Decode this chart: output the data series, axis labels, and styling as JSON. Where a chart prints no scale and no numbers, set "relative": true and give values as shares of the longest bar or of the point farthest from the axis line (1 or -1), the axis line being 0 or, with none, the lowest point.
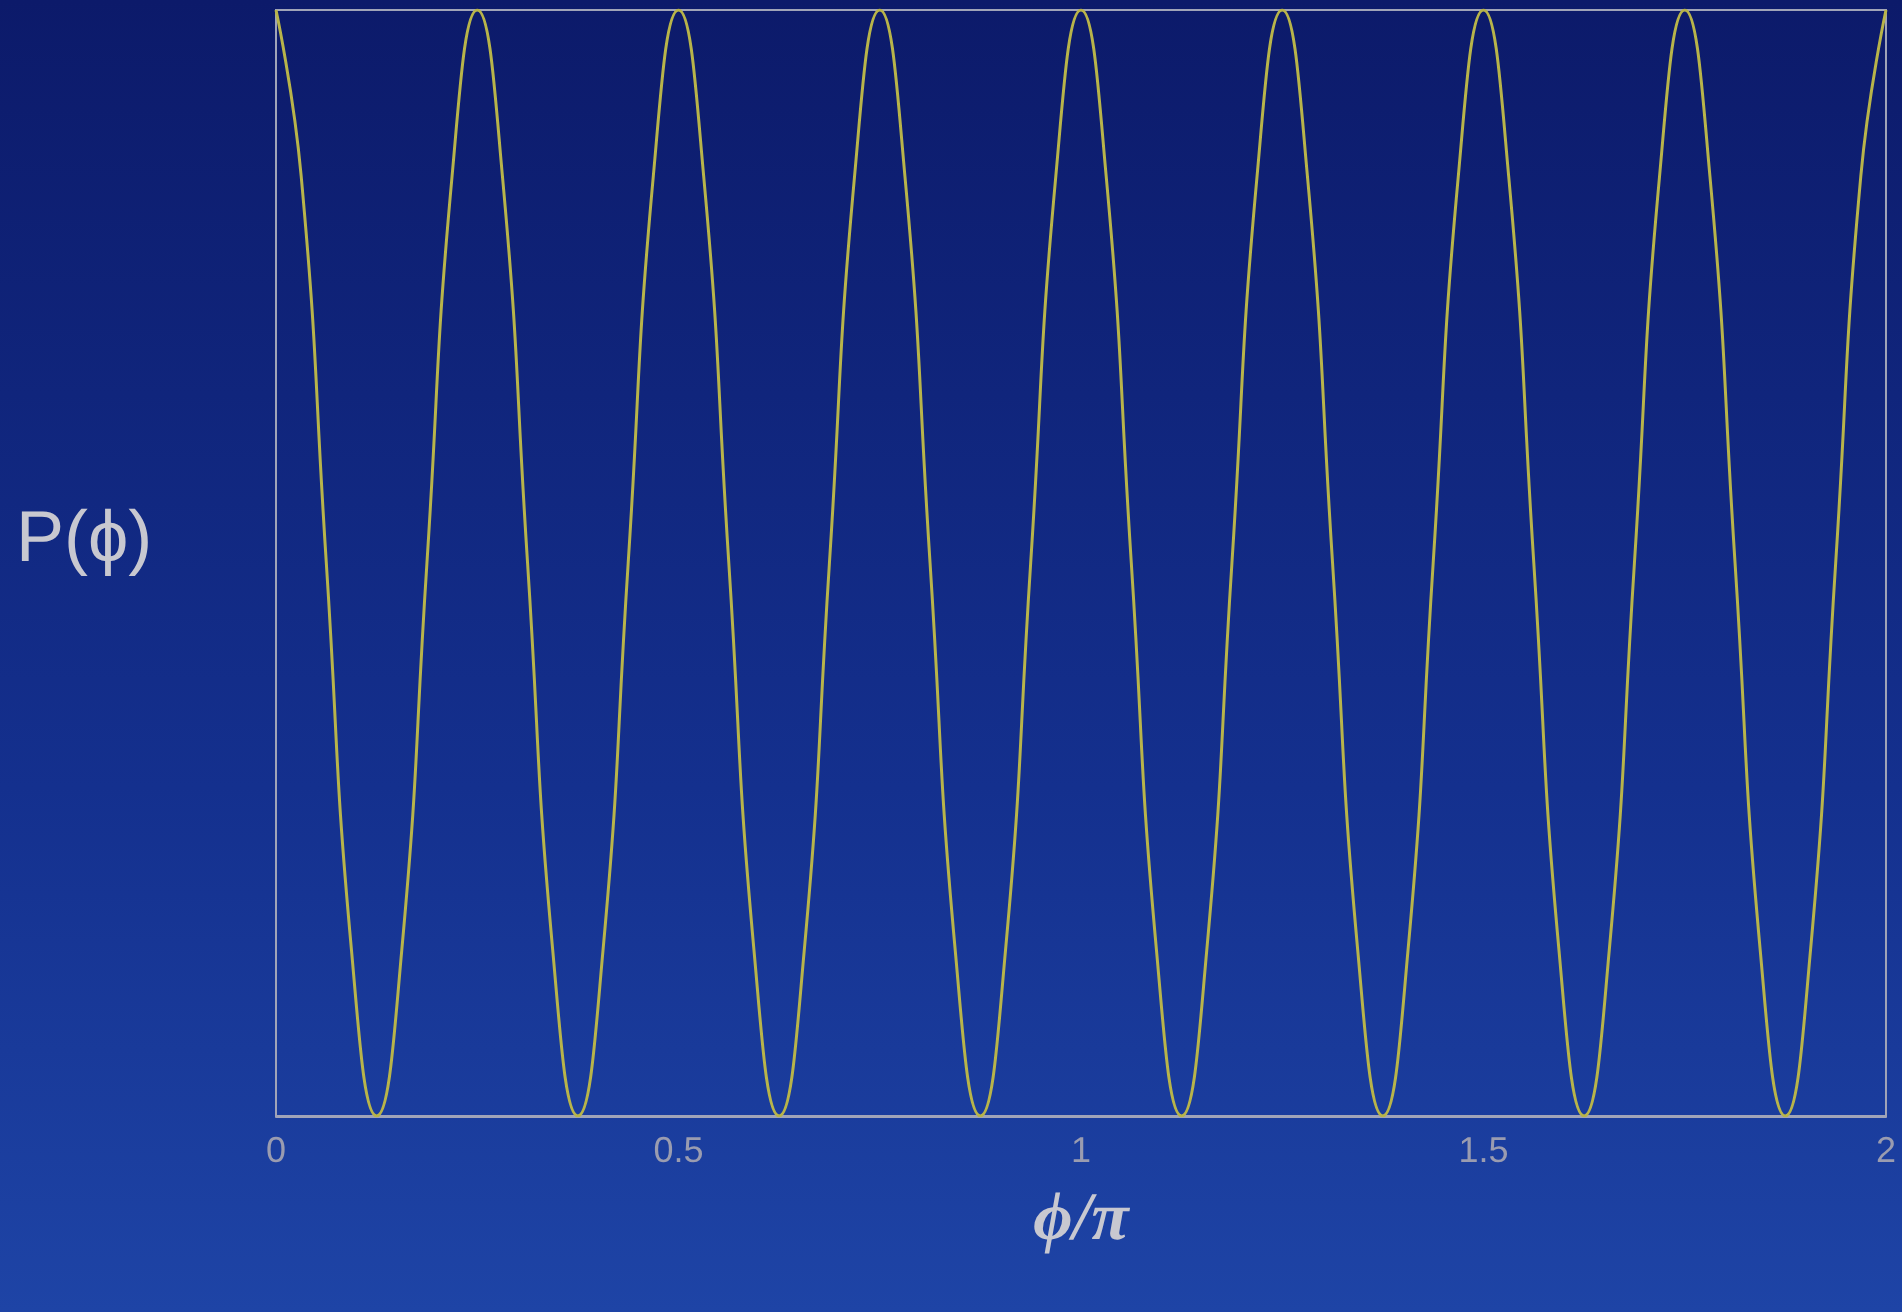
{
  "chart_data": {
    "type": "line",
    "xlabel": "ϕ/π",
    "ylabel": "P(ϕ)",
    "relative": true,
    "xlim": [
      0,
      2
    ],
    "xticks": [
      0,
      0.5,
      1,
      1.5,
      2
    ],
    "tick_labels": "x",
    "grid": false,
    "x": [
      0,
      0.03125,
      0.0625,
      0.09375,
      0.125,
      0.15625,
      0.1875,
      0.21875,
      0.25,
      0.28125,
      0.3125,
      0.34375,
      0.375,
      0.40625,
      0.4375,
      0.46875,
      0.5,
      0.53125,
      0.5625,
      0.59375,
      0.625,
      0.65625,
      0.6875,
      0.71875,
      0.75,
      0.78125,
      0.8125,
      0.84375,
      0.875,
      0.90625,
      0.9375,
      0.96875,
      1,
      1.03125,
      1.0625,
      1.09375,
      1.125,
      1.15625,
      1.1875,
      1.21875,
      1.25,
      1.28125,
      1.3125,
      1.34375,
      1.375,
      1.40625,
      1.4375,
      1.46875,
      1.5,
      1.53125,
      1.5625,
      1.59375,
      1.625,
      1.65625,
      1.6875,
      1.71875,
      1.75,
      1.78125,
      1.8125,
      1.84375,
      1.875,
      1.90625,
      1.9375,
      1.96875,
      2
    ],
    "series": [
      {
        "color": "#b8b44a",
        "values": [
          1,
          0.85,
          0.5,
          0.15,
          0,
          0.15,
          0.5,
          0.85,
          1,
          0.85,
          0.5,
          0.15,
          0,
          0.15,
          0.5,
          0.85,
          1,
          0.85,
          0.5,
          0.15,
          0,
          0.15,
          0.5,
          0.85,
          1,
          0.85,
          0.5,
          0.15,
          0,
          0.15,
          0.5,
          0.85,
          1,
          0.85,
          0.5,
          0.15,
          0,
          0.15,
          0.5,
          0.85,
          1,
          0.85,
          0.5,
          0.15,
          0,
          0.15,
          0.5,
          0.85,
          1,
          0.85,
          0.5,
          0.15,
          0,
          0.15,
          0.5,
          0.85,
          1,
          0.85,
          0.5,
          0.15,
          0,
          0.15,
          0.5,
          0.85,
          1
        ]
      }
    ]
  }
}
